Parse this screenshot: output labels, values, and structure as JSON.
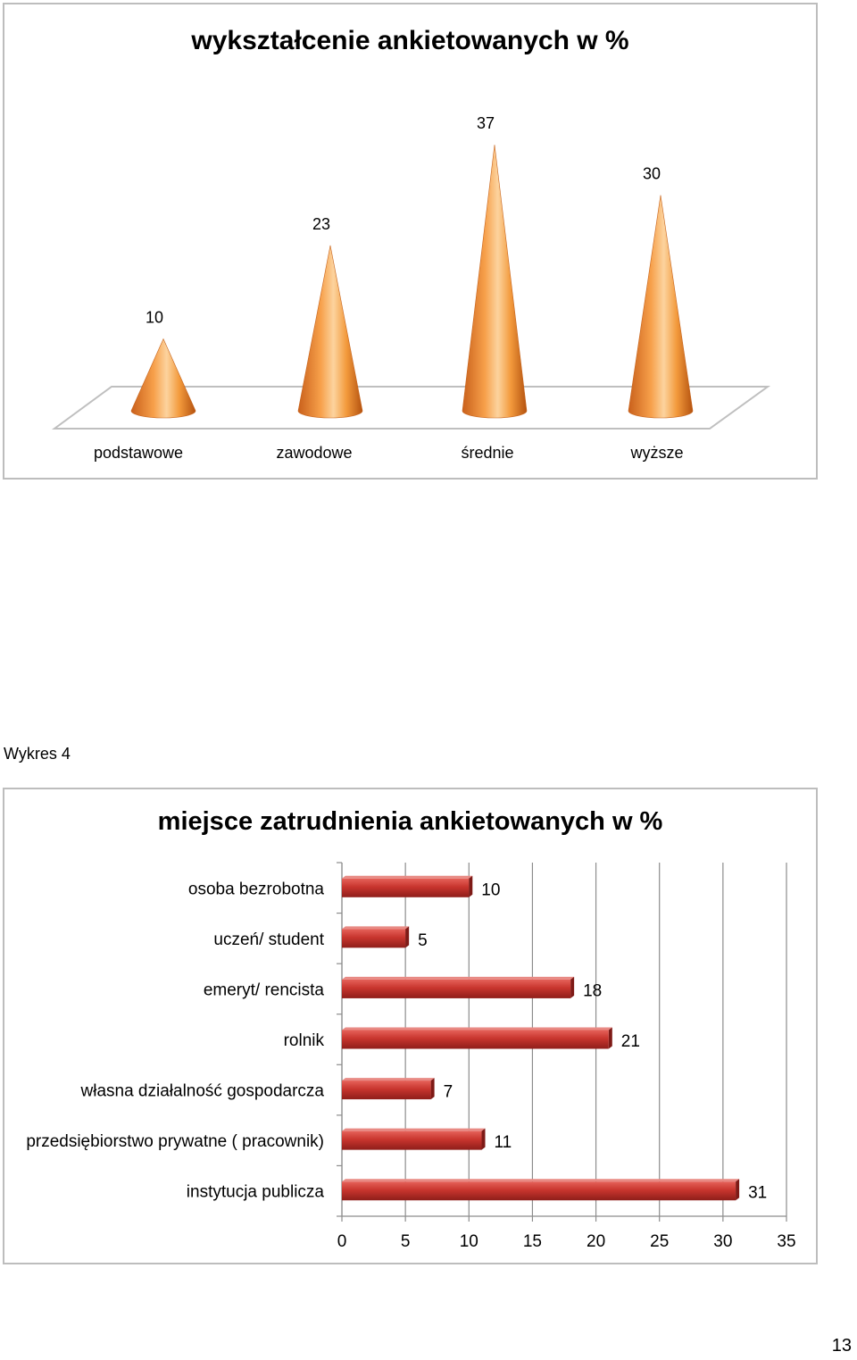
{
  "charts": [
    {
      "title": "wykształcenie ankietowanych w %",
      "chart_data": {
        "type": "bar",
        "shape": "cone",
        "title": "wykształcenie ankietowanych w %",
        "categories": [
          "podstawowe",
          "zawodowe",
          "średnie",
          "wyższe"
        ],
        "values": [
          10,
          23,
          37,
          30
        ],
        "xlabel": "",
        "ylabel": "",
        "ylim": [
          0,
          40
        ],
        "grid": false,
        "legend": "none",
        "color": "#f09a3e"
      }
    },
    {
      "title": "miejsce zatrudnienia ankietowanych w %",
      "chart_data": {
        "type": "bar",
        "orientation": "horizontal",
        "title": "miejsce zatrudnienia ankietowanych w %",
        "categories": [
          "osoba bezrobotna",
          "uczeń/ student",
          "emeryt/ rencista",
          "rolnik",
          "własna działalność gospodarcza",
          "przedsiębiorstwo prywatne ( pracownik)",
          "instytucja publicza"
        ],
        "values": [
          10,
          5,
          18,
          21,
          7,
          11,
          31
        ],
        "x_ticks": [
          "0",
          "5",
          "10",
          "15",
          "20",
          "25",
          "30",
          "35"
        ],
        "xlim": [
          0,
          35
        ],
        "xlabel": "",
        "ylabel": "",
        "grid": true,
        "legend": "none",
        "color": "#c0312b"
      }
    }
  ],
  "caption": "Wykres 4",
  "page_number": "13"
}
